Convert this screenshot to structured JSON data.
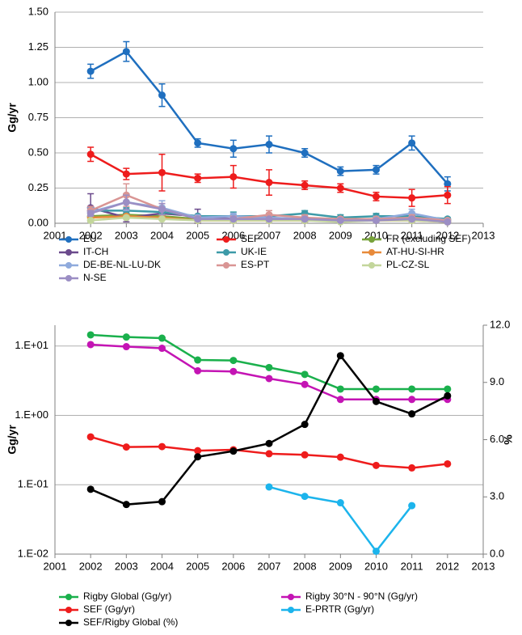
{
  "chart_data": [
    {
      "type": "line",
      "ylabel": "Gg/yr",
      "error_bars": true,
      "grid": true,
      "x": [
        2002,
        2003,
        2004,
        2005,
        2006,
        2007,
        2008,
        2009,
        2010,
        2011,
        2012
      ],
      "xlim": [
        2001,
        2013
      ],
      "xticks": [
        2001,
        2002,
        2003,
        2004,
        2005,
        2006,
        2007,
        2008,
        2009,
        2010,
        2011,
        2012,
        2013
      ],
      "ylim": [
        0,
        1.5
      ],
      "yticks": [
        {
          "value": 0,
          "label": "0.00"
        },
        {
          "value": 0.25,
          "label": "0.25"
        },
        {
          "value": 0.5,
          "label": "0.50"
        },
        {
          "value": 0.75,
          "label": "0.75"
        },
        {
          "value": 1,
          "label": "1.00"
        },
        {
          "value": 1.25,
          "label": "1.25"
        },
        {
          "value": 1.5,
          "label": "1.50"
        }
      ],
      "series": [
        {
          "name": "EU",
          "color": "#1f6fbf",
          "values": [
            1.08,
            1.22,
            0.91,
            0.57,
            0.53,
            0.56,
            0.5,
            0.37,
            0.38,
            0.57,
            0.28
          ],
          "errors": [
            0.05,
            0.07,
            0.08,
            0.03,
            0.06,
            0.06,
            0.03,
            0.03,
            0.03,
            0.05,
            0.05
          ]
        },
        {
          "name": "SEF",
          "color": "#ee1c1c",
          "values": [
            0.49,
            0.35,
            0.36,
            0.32,
            0.33,
            0.29,
            0.27,
            0.25,
            0.19,
            0.18,
            0.2
          ],
          "errors": [
            0.05,
            0.04,
            0.13,
            0.03,
            0.08,
            0.09,
            0.03,
            0.03,
            0.03,
            0.06,
            0.06
          ]
        },
        {
          "name": "FR (excluding SEF)",
          "color": "#77a23a",
          "values": [
            0.05,
            0.06,
            0.05,
            0.03,
            0.03,
            0.03,
            0.03,
            0.02,
            0.02,
            0.03,
            0.02
          ],
          "errors": [
            0.01,
            0.01,
            0.01,
            0.01,
            0.01,
            0.01,
            0.01,
            0.01,
            0.01,
            0.01,
            0.01
          ]
        },
        {
          "name": "IT-CH",
          "color": "#6b4a8c",
          "values": [
            0.11,
            0.04,
            0.07,
            0.05,
            0.03,
            0.04,
            0.02,
            0.02,
            0.02,
            0.03,
            0.01
          ],
          "errors": [
            0.1,
            0.03,
            0.04,
            0.05,
            0.02,
            0.02,
            0.01,
            0.01,
            0.01,
            0.02,
            0.01
          ]
        },
        {
          "name": "UK-IE",
          "color": "#3d9aa8",
          "values": [
            0.09,
            0.09,
            0.08,
            0.05,
            0.05,
            0.05,
            0.07,
            0.04,
            0.05,
            0.05,
            0.03
          ],
          "errors": [
            0.02,
            0.02,
            0.02,
            0.01,
            0.03,
            0.02,
            0.02,
            0.02,
            0.02,
            0.02,
            0.01
          ]
        },
        {
          "name": "AT-HU-SI-HR",
          "color": "#e88a3a",
          "values": [
            0.04,
            0.05,
            0.04,
            0.02,
            0.02,
            0.02,
            0.02,
            0.02,
            0.02,
            0.02,
            0.01
          ],
          "errors": [
            0.01,
            0.01,
            0.01,
            0.01,
            0.01,
            0.01,
            0.01,
            0.01,
            0.01,
            0.01,
            0.01
          ]
        },
        {
          "name": "DE-BE-NL-LU-DK",
          "color": "#8faadc",
          "values": [
            0.08,
            0.15,
            0.11,
            0.04,
            0.05,
            0.04,
            0.03,
            0.03,
            0.03,
            0.07,
            0.02
          ],
          "errors": [
            0.03,
            0.06,
            0.05,
            0.02,
            0.02,
            0.02,
            0.01,
            0.01,
            0.02,
            0.03,
            0.01
          ]
        },
        {
          "name": "ES-PT",
          "color": "#d99594",
          "values": [
            0.09,
            0.2,
            0.1,
            0.03,
            0.03,
            0.06,
            0.04,
            0.03,
            0.03,
            0.04,
            0.02
          ],
          "errors": [
            0.03,
            0.08,
            0.04,
            0.02,
            0.02,
            0.03,
            0.02,
            0.01,
            0.01,
            0.02,
            0.01
          ]
        },
        {
          "name": "PL-CZ-SL",
          "color": "#c3d69b",
          "values": [
            0.02,
            0.04,
            0.03,
            0.02,
            0.02,
            0.02,
            0.02,
            0.01,
            0.02,
            0.02,
            0.01
          ],
          "errors": [
            0.01,
            0.01,
            0.01,
            0.01,
            0.01,
            0.01,
            0.01,
            0.01,
            0.01,
            0.01,
            0.01
          ]
        },
        {
          "name": "N-SE",
          "color": "#9b8ec4",
          "values": [
            0.07,
            0.15,
            0.1,
            0.03,
            0.03,
            0.03,
            0.03,
            0.02,
            0.02,
            0.03,
            0.01
          ],
          "errors": [
            0.02,
            0.05,
            0.04,
            0.01,
            0.01,
            0.01,
            0.01,
            0.01,
            0.01,
            0.01,
            0.01
          ]
        }
      ]
    },
    {
      "type": "line",
      "ylabel": "Gg/yr",
      "y2label": "%",
      "log_y": true,
      "grid": true,
      "x": [
        2002,
        2003,
        2004,
        2005,
        2006,
        2007,
        2008,
        2009,
        2010,
        2011,
        2012
      ],
      "xlim": [
        2001,
        2013
      ],
      "xticks": [
        2001,
        2002,
        2003,
        2004,
        2005,
        2006,
        2007,
        2008,
        2009,
        2010,
        2011,
        2012,
        2013
      ],
      "ylim": [
        0.01,
        20
      ],
      "yticks": [
        {
          "value": 0.01,
          "label": "1.E-02"
        },
        {
          "value": 0.1,
          "label": "1.E-01"
        },
        {
          "value": 1,
          "label": "1.E+00"
        },
        {
          "value": 10,
          "label": "1.E+01"
        }
      ],
      "y2lim": [
        0,
        12
      ],
      "y2ticks": [
        {
          "value": 0,
          "label": "0.0"
        },
        {
          "value": 3,
          "label": "3.0"
        },
        {
          "value": 6,
          "label": "6.0"
        },
        {
          "value": 9,
          "label": "9.0"
        },
        {
          "value": 12,
          "label": "12.0"
        }
      ],
      "series": [
        {
          "name": "Rigby Global (Gg/yr)",
          "color": "#1ab04c",
          "values": [
            14.5,
            13.5,
            13,
            6.3,
            6.2,
            4.9,
            3.9,
            2.4,
            2.4,
            2.4,
            2.4
          ]
        },
        {
          "name": "Rigby 30°N - 90°N (Gg/yr)",
          "color": "#c414b4",
          "values": [
            10.5,
            9.8,
            9.3,
            4.4,
            4.3,
            3.4,
            2.8,
            1.7,
            1.7,
            1.7,
            1.7
          ]
        },
        {
          "name": "SEF (Gg/yr)",
          "color": "#ee1c1c",
          "values": [
            0.49,
            0.35,
            0.355,
            0.31,
            0.32,
            0.28,
            0.27,
            0.25,
            0.19,
            0.175,
            0.2
          ]
        },
        {
          "name": "E-PRTR (Gg/yr)",
          "color": "#1cb4ec",
          "values": [
            null,
            null,
            null,
            null,
            null,
            0.093,
            0.068,
            0.055,
            0.011,
            0.05,
            null
          ]
        },
        {
          "name": "SEF/Rigby Global (%)",
          "color": "#000000",
          "axis": "y2",
          "values": [
            3.4,
            2.6,
            2.75,
            5.1,
            5.4,
            5.8,
            6.8,
            10.4,
            8.0,
            7.35,
            8.3
          ]
        }
      ]
    }
  ]
}
